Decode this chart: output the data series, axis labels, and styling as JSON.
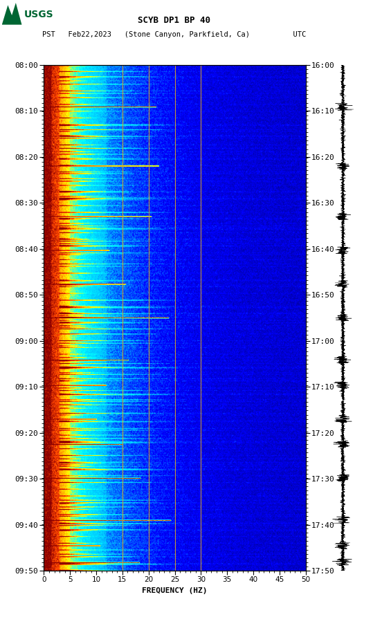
{
  "title_line1": "SCYB DP1 BP 40",
  "title_line2": "PST   Feb22,2023   (Stone Canyon, Parkfield, Ca)          UTC",
  "xlabel": "FREQUENCY (HZ)",
  "freq_min": 0,
  "freq_max": 50,
  "freq_ticks": [
    0,
    5,
    10,
    15,
    20,
    25,
    30,
    35,
    40,
    45,
    50
  ],
  "time_labels_left": [
    "08:00",
    "08:10",
    "08:20",
    "08:30",
    "08:40",
    "08:50",
    "09:00",
    "09:10",
    "09:20",
    "09:30",
    "09:40",
    "09:50"
  ],
  "time_labels_right": [
    "16:00",
    "16:10",
    "16:20",
    "16:30",
    "16:40",
    "16:50",
    "17:00",
    "17:10",
    "17:20",
    "17:30",
    "17:40",
    "17:50"
  ],
  "vertical_lines_freq": [
    15,
    20,
    25,
    30
  ],
  "background_color": "#ffffff",
  "usgs_green": "#006633",
  "n_time": 600,
  "n_freq": 500
}
